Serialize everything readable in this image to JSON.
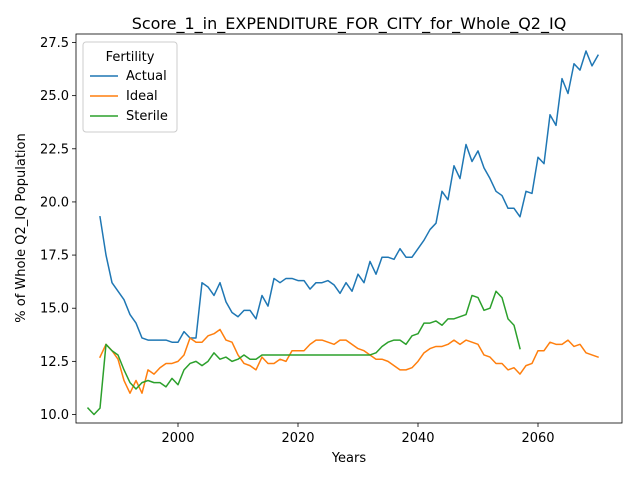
{
  "chart_data": {
    "type": "line",
    "title": "Score_1_in_EXPENDITURE_FOR_CITY_for_Whole_Q2_IQ",
    "xlabel": "Years",
    "ylabel": "% of Whole Q2_IQ Population",
    "xlim": [
      2083.5,
      2075.5
    ],
    "xlim_note": "",
    "x_range": [
      1983,
      2074
    ],
    "ylim": [
      9.6,
      27.9
    ],
    "xticks": [
      2000,
      2020,
      2040,
      2060
    ],
    "yticks": [
      10.0,
      12.5,
      15.0,
      17.5,
      20.0,
      22.5,
      25.0,
      27.5
    ],
    "ytick_labels": [
      "10.0",
      "12.5",
      "15.0",
      "17.5",
      "20.0",
      "22.5",
      "25.0",
      "27.5"
    ],
    "grid": false,
    "legend": {
      "title": "Fertility",
      "placement": "top-left"
    },
    "series": [
      {
        "name": "Actual",
        "color": "#1f77b4",
        "x": [
          1987,
          1988,
          1989,
          1990,
          1991,
          1992,
          1993,
          1994,
          1995,
          1996,
          1997,
          1998,
          1999,
          2000,
          2001,
          2002,
          2003,
          2004,
          2005,
          2006,
          2007,
          2008,
          2009,
          2010,
          2011,
          2012,
          2013,
          2014,
          2015,
          2016,
          2017,
          2018,
          2019,
          2020,
          2021,
          2022,
          2023,
          2024,
          2025,
          2026,
          2027,
          2028,
          2029,
          2030,
          2031,
          2032,
          2033,
          2034,
          2035,
          2036,
          2037,
          2038,
          2039,
          2040,
          2041,
          2042,
          2043,
          2044,
          2045,
          2046,
          2047,
          2048,
          2049,
          2050,
          2051,
          2052,
          2053,
          2054,
          2055,
          2056,
          2057,
          2058,
          2059,
          2060,
          2061,
          2062,
          2063,
          2064,
          2065,
          2066,
          2067,
          2068,
          2069,
          2070
        ],
        "values": [
          19.3,
          17.5,
          16.2,
          15.8,
          15.4,
          14.7,
          14.3,
          13.6,
          13.5,
          13.5,
          13.5,
          13.5,
          13.4,
          13.4,
          13.9,
          13.6,
          13.6,
          16.2,
          16.0,
          15.6,
          16.2,
          15.3,
          14.8,
          14.6,
          14.9,
          14.9,
          14.5,
          15.6,
          15.1,
          16.4,
          16.2,
          16.4,
          16.4,
          16.3,
          16.3,
          15.9,
          16.2,
          16.2,
          16.3,
          16.1,
          15.7,
          16.2,
          15.8,
          16.6,
          16.2,
          17.2,
          16.6,
          17.4,
          17.4,
          17.3,
          17.8,
          17.4,
          17.4,
          17.8,
          18.2,
          18.7,
          19.0,
          20.5,
          20.1,
          21.7,
          21.1,
          22.7,
          21.9,
          22.4,
          21.6,
          21.1,
          20.5,
          20.3,
          19.7,
          19.7,
          19.3,
          20.5,
          20.4,
          22.1,
          21.8,
          24.1,
          23.6,
          25.8,
          25.1,
          26.5,
          26.2,
          27.1,
          26.4,
          26.9
        ]
      },
      {
        "name": "Ideal",
        "color": "#ff7f0e",
        "x": [
          1987,
          1988,
          1989,
          1990,
          1991,
          1992,
          1993,
          1994,
          1995,
          1996,
          1997,
          1998,
          1999,
          2000,
          2001,
          2002,
          2003,
          2004,
          2005,
          2006,
          2007,
          2008,
          2009,
          2010,
          2011,
          2012,
          2013,
          2014,
          2015,
          2016,
          2017,
          2018,
          2019,
          2020,
          2021,
          2022,
          2023,
          2024,
          2025,
          2026,
          2027,
          2028,
          2029,
          2030,
          2031,
          2032,
          2033,
          2034,
          2035,
          2036,
          2037,
          2038,
          2039,
          2040,
          2041,
          2042,
          2043,
          2044,
          2045,
          2046,
          2047,
          2048,
          2049,
          2050,
          2051,
          2052,
          2053,
          2054,
          2055,
          2056,
          2057,
          2058,
          2059,
          2060,
          2061,
          2062,
          2063,
          2064,
          2065,
          2066,
          2067,
          2068,
          2069,
          2070
        ],
        "values": [
          12.7,
          13.3,
          13.0,
          12.6,
          11.6,
          11.0,
          11.6,
          11.0,
          12.1,
          11.9,
          12.2,
          12.4,
          12.4,
          12.5,
          12.8,
          13.6,
          13.4,
          13.4,
          13.7,
          13.8,
          14.0,
          13.5,
          13.4,
          12.8,
          12.4,
          12.3,
          12.1,
          12.7,
          12.4,
          12.4,
          12.6,
          12.5,
          13.0,
          13.0,
          13.0,
          13.3,
          13.5,
          13.5,
          13.4,
          13.3,
          13.5,
          13.5,
          13.3,
          13.1,
          13.0,
          12.8,
          12.6,
          12.6,
          12.5,
          12.3,
          12.1,
          12.1,
          12.2,
          12.5,
          12.9,
          13.1,
          13.2,
          13.2,
          13.3,
          13.5,
          13.3,
          13.5,
          13.4,
          13.3,
          12.8,
          12.7,
          12.4,
          12.4,
          12.1,
          12.2,
          11.9,
          12.3,
          12.4,
          13.0,
          13.0,
          13.4,
          13.3,
          13.3,
          13.5,
          13.2,
          13.3,
          12.9,
          12.8,
          12.7
        ]
      },
      {
        "name": "Sterile",
        "color": "#2ca02c",
        "x": [
          1985,
          1986,
          1987,
          1988,
          1989,
          1990,
          1991,
          1992,
          1993,
          1994,
          1995,
          1996,
          1997,
          1998,
          1999,
          2000,
          2001,
          2002,
          2003,
          2004,
          2005,
          2006,
          2007,
          2008,
          2009,
          2010,
          2011,
          2012,
          2013,
          2014,
          2015,
          2016,
          2017,
          2018,
          2019,
          2020,
          2021,
          2022,
          2023,
          2024,
          2025,
          2026,
          2027,
          2028,
          2029,
          2030,
          2031,
          2032,
          2033,
          2034,
          2035,
          2036,
          2037,
          2038,
          2039,
          2040,
          2041,
          2042,
          2043,
          2044,
          2045,
          2046,
          2047,
          2048,
          2049,
          2050,
          2051,
          2052,
          2053,
          2054,
          2055,
          2056,
          2057
        ],
        "values": [
          10.3,
          10.0,
          10.3,
          13.3,
          13.0,
          12.8,
          12.1,
          11.5,
          11.2,
          11.5,
          11.6,
          11.5,
          11.5,
          11.3,
          11.7,
          11.4,
          12.1,
          12.4,
          12.5,
          12.3,
          12.5,
          12.9,
          12.6,
          12.7,
          12.5,
          12.6,
          12.8,
          12.6,
          12.6,
          12.8,
          12.8,
          12.8,
          12.8,
          12.8,
          12.8,
          12.8,
          12.8,
          12.8,
          12.8,
          12.8,
          12.8,
          12.8,
          12.8,
          12.8,
          12.8,
          12.8,
          12.8,
          12.8,
          12.9,
          13.2,
          13.4,
          13.5,
          13.5,
          13.3,
          13.7,
          13.8,
          14.3,
          14.3,
          14.4,
          14.2,
          14.5,
          14.5,
          14.6,
          14.7,
          15.6,
          15.5,
          14.9,
          15.0,
          15.8,
          15.5,
          14.5,
          14.2,
          13.1
        ]
      }
    ]
  }
}
